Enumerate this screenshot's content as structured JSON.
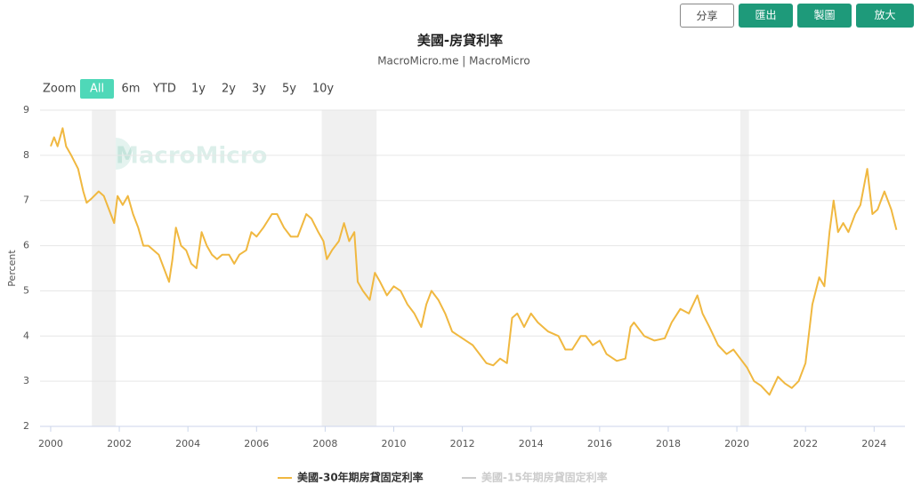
{
  "toolbar": [
    "分享",
    "匯出",
    "製圖",
    "放大"
  ],
  "zoom": {
    "label": "Zoom",
    "options": [
      "All",
      "6m",
      "YTD",
      "1y",
      "2y",
      "3y",
      "5y",
      "10y"
    ],
    "active": 0
  },
  "watermark": "MacroMicro",
  "chart_data": {
    "type": "line",
    "title": "美國-房貸利率",
    "subtitle": "MacroMicro.me | MacroMicro",
    "y_label": "Percent",
    "xlim": [
      1999.69,
      2024.9
    ],
    "ylim": [
      2,
      9
    ],
    "xticks": [
      2000,
      2002,
      2004,
      2006,
      2008,
      2010,
      2012,
      2014,
      2016,
      2018,
      2020,
      2022,
      2024
    ],
    "yticks": [
      2,
      3,
      4,
      5,
      6,
      7,
      8,
      9
    ],
    "grid": true,
    "bands": [
      [
        2001.2,
        2001.9
      ],
      [
        2007.9,
        2009.5
      ],
      [
        2020.1,
        2020.35
      ]
    ],
    "band_color": "#f0f0f0",
    "x": [
      2000.0,
      2000.1,
      2000.2,
      2000.35,
      2000.45,
      2000.6,
      2000.8,
      2000.95,
      2001.05,
      2001.2,
      2001.4,
      2001.55,
      2001.7,
      2001.85,
      2001.95,
      2002.1,
      2002.25,
      2002.4,
      2002.55,
      2002.7,
      2002.85,
      2003.0,
      2003.15,
      2003.3,
      2003.45,
      2003.55,
      2003.65,
      2003.8,
      2003.95,
      2004.1,
      2004.25,
      2004.4,
      2004.55,
      2004.7,
      2004.85,
      2005.0,
      2005.2,
      2005.35,
      2005.5,
      2005.7,
      2005.85,
      2006.0,
      2006.2,
      2006.45,
      2006.6,
      2006.8,
      2007.0,
      2007.2,
      2007.45,
      2007.6,
      2007.8,
      2007.95,
      2008.05,
      2008.2,
      2008.4,
      2008.55,
      2008.7,
      2008.85,
      2008.95,
      2009.1,
      2009.3,
      2009.45,
      2009.6,
      2009.8,
      2010.0,
      2010.2,
      2010.4,
      2010.6,
      2010.8,
      2010.95,
      2011.1,
      2011.3,
      2011.5,
      2011.7,
      2011.9,
      2012.1,
      2012.3,
      2012.5,
      2012.7,
      2012.9,
      2013.1,
      2013.3,
      2013.45,
      2013.6,
      2013.8,
      2014.0,
      2014.2,
      2014.5,
      2014.8,
      2015.0,
      2015.2,
      2015.45,
      2015.6,
      2015.8,
      2016.0,
      2016.2,
      2016.5,
      2016.75,
      2016.9,
      2017.0,
      2017.3,
      2017.6,
      2017.9,
      2018.1,
      2018.35,
      2018.6,
      2018.85,
      2019.0,
      2019.2,
      2019.45,
      2019.7,
      2019.9,
      2020.1,
      2020.3,
      2020.5,
      2020.7,
      2020.95,
      2021.2,
      2021.4,
      2021.6,
      2021.8,
      2022.0,
      2022.2,
      2022.4,
      2022.55,
      2022.7,
      2022.82,
      2022.95,
      2023.1,
      2023.25,
      2023.45,
      2023.6,
      2023.8,
      2023.95,
      2024.1,
      2024.3,
      2024.5,
      2024.65
    ],
    "series": [
      {
        "name": "美國-30年期房貸固定利率",
        "color": "#f0b840",
        "values": [
          8.2,
          8.4,
          8.2,
          8.6,
          8.2,
          8.0,
          7.7,
          7.2,
          6.95,
          7.05,
          7.2,
          7.1,
          6.8,
          6.5,
          7.1,
          6.9,
          7.1,
          6.7,
          6.4,
          6.0,
          6.0,
          5.9,
          5.8,
          5.5,
          5.2,
          5.7,
          6.4,
          6.0,
          5.9,
          5.6,
          5.5,
          6.3,
          6.0,
          5.8,
          5.7,
          5.8,
          5.8,
          5.6,
          5.8,
          5.9,
          6.3,
          6.2,
          6.4,
          6.7,
          6.7,
          6.4,
          6.2,
          6.2,
          6.7,
          6.6,
          6.3,
          6.1,
          5.7,
          5.9,
          6.1,
          6.5,
          6.1,
          6.3,
          5.2,
          5.0,
          4.8,
          5.4,
          5.2,
          4.9,
          5.1,
          5.0,
          4.7,
          4.5,
          4.2,
          4.7,
          5.0,
          4.8,
          4.5,
          4.1,
          4.0,
          3.9,
          3.8,
          3.6,
          3.4,
          3.35,
          3.5,
          3.4,
          4.4,
          4.5,
          4.2,
          4.5,
          4.3,
          4.1,
          4.0,
          3.7,
          3.7,
          4.0,
          4.0,
          3.8,
          3.9,
          3.6,
          3.45,
          3.5,
          4.2,
          4.3,
          4.0,
          3.9,
          3.95,
          4.3,
          4.6,
          4.5,
          4.9,
          4.5,
          4.2,
          3.8,
          3.6,
          3.7,
          3.5,
          3.3,
          3.0,
          2.9,
          2.7,
          3.1,
          2.95,
          2.85,
          3.0,
          3.4,
          4.7,
          5.3,
          5.1,
          6.3,
          7.0,
          6.3,
          6.5,
          6.3,
          6.7,
          6.9,
          7.7,
          6.7,
          6.8,
          7.2,
          6.8,
          6.35
        ]
      }
    ],
    "inactive_legend": {
      "name": "美國-15年期房貸固定利率",
      "color": "#cccccc"
    }
  }
}
